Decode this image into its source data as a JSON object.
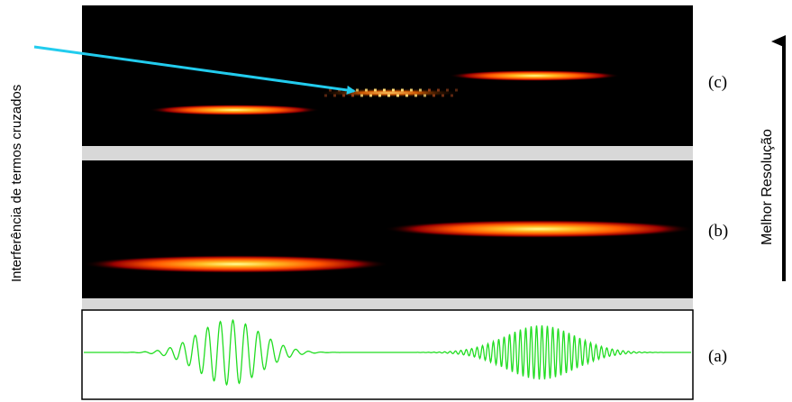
{
  "annotation_text": "Interferência de termos cruzados",
  "axis_caption": "Melhor Resolução",
  "panel_labels": {
    "c": "(c)",
    "b": "(b)",
    "a": "(a)"
  },
  "colors": {
    "panel_background": "#000000",
    "separator": "#d8d8d8",
    "signal": "#22dd22",
    "arrow": "#22ccee",
    "axis_arrow": "#000000",
    "blob_core": "#ffff99",
    "blob_mid": "#ff6600",
    "blob_edge": "#990000"
  }
}
